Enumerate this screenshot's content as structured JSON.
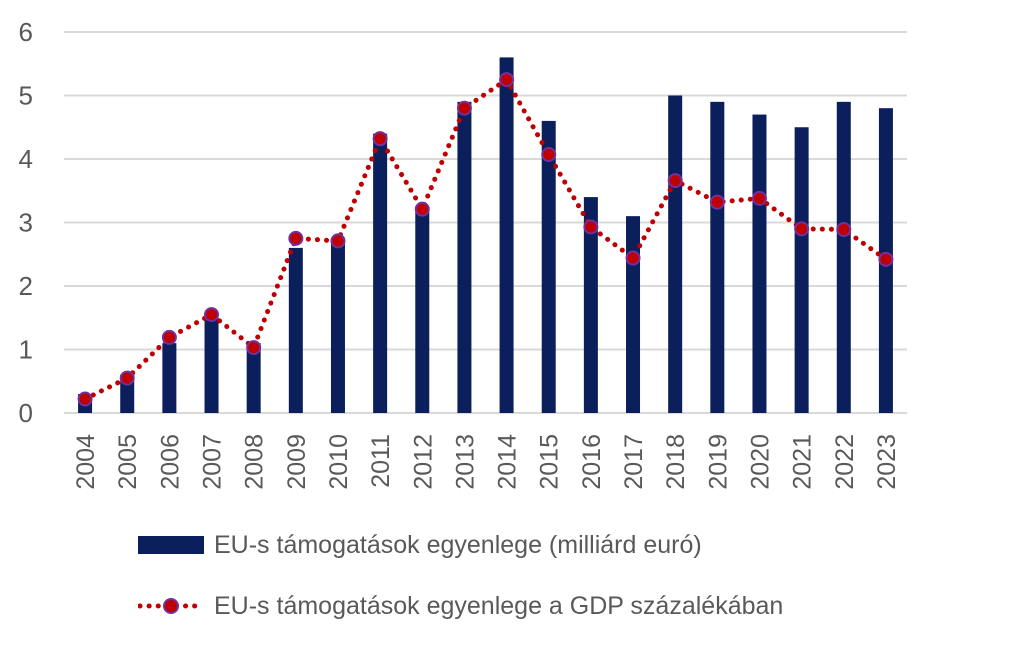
{
  "colors": {
    "bar": "#0b1f5c",
    "line": "#c00000",
    "marker_edge": "#7030a0",
    "grid": "#d9d9d9",
    "text": "#595959"
  },
  "chart_data": {
    "type": "bar",
    "title": "",
    "xlabel": "",
    "ylabel": "",
    "ylim": [
      0,
      6
    ],
    "yticks": [
      "0",
      "1",
      "2",
      "3",
      "4",
      "5",
      "6"
    ],
    "grid": true,
    "legend_position": "bottom",
    "categories": [
      "2004",
      "2005",
      "2006",
      "2007",
      "2008",
      "2009",
      "2010",
      "2011",
      "2012",
      "2013",
      "2014",
      "2015",
      "2016",
      "2017",
      "2018",
      "2019",
      "2020",
      "2021",
      "2022",
      "2023"
    ],
    "series": [
      {
        "name": "EU-s támogatások egyenlege (milliárd euró)",
        "type": "bar",
        "values": [
          0.3,
          0.6,
          1.1,
          1.5,
          1.1,
          2.6,
          2.7,
          4.4,
          3.2,
          4.9,
          5.6,
          4.6,
          3.4,
          3.1,
          5.0,
          4.9,
          4.7,
          4.5,
          4.9,
          4.8
        ]
      },
      {
        "name": "EU-s támogatások egyenlege a GDP százalékában",
        "type": "line",
        "style": "dotted-with-markers",
        "values": [
          0.22,
          0.55,
          1.19,
          1.55,
          1.03,
          2.75,
          2.71,
          4.32,
          3.21,
          4.8,
          5.25,
          4.07,
          2.93,
          2.44,
          3.66,
          3.32,
          3.38,
          2.9,
          2.89,
          2.42
        ]
      }
    ]
  }
}
